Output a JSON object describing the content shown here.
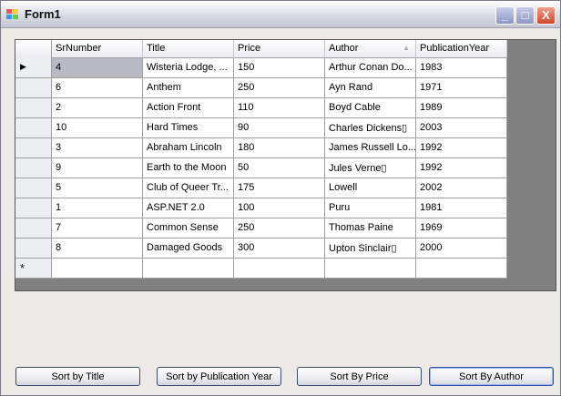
{
  "window": {
    "title": "Form1",
    "minimize": "_",
    "maximize": "□",
    "close": "X"
  },
  "grid": {
    "columns": [
      "SrNumber",
      "Title",
      "Price",
      "Author",
      "PublicationYear"
    ],
    "sorted_column": "Author",
    "sort_direction": "ascending",
    "current_row_marker": "▶",
    "new_row_marker": "*",
    "rows": [
      [
        "4",
        "Wisteria Lodge, ...",
        "150",
        "Arthur Conan Do...",
        "1983"
      ],
      [
        "6",
        "Anthem",
        "250",
        "Ayn Rand",
        "1971"
      ],
      [
        "2",
        "Action Front",
        "110",
        "Boyd Cable",
        "1989"
      ],
      [
        "10",
        "Hard Times",
        "90",
        "Charles Dickens▯",
        "2003"
      ],
      [
        "3",
        "Abraham Lincoln",
        "180",
        "James Russell Lo...",
        "1992"
      ],
      [
        "9",
        "Earth to the Moon",
        "50",
        "Jules Verne▯",
        "1992"
      ],
      [
        "5",
        "Club of Queer Tr...",
        "175",
        "Lowell",
        "2002"
      ],
      [
        "1",
        "ASP.NET 2.0",
        "100",
        "Puru",
        "1981"
      ],
      [
        "7",
        "Common Sense",
        "250",
        "Thomas Paine",
        "1969"
      ],
      [
        "8",
        "Damaged Goods",
        "300",
        "Upton Sinclair▯",
        "2000"
      ]
    ]
  },
  "buttons": [
    "Sort by Title",
    "Sort by Publication Year",
    "Sort By Price",
    "Sort By Author"
  ]
}
